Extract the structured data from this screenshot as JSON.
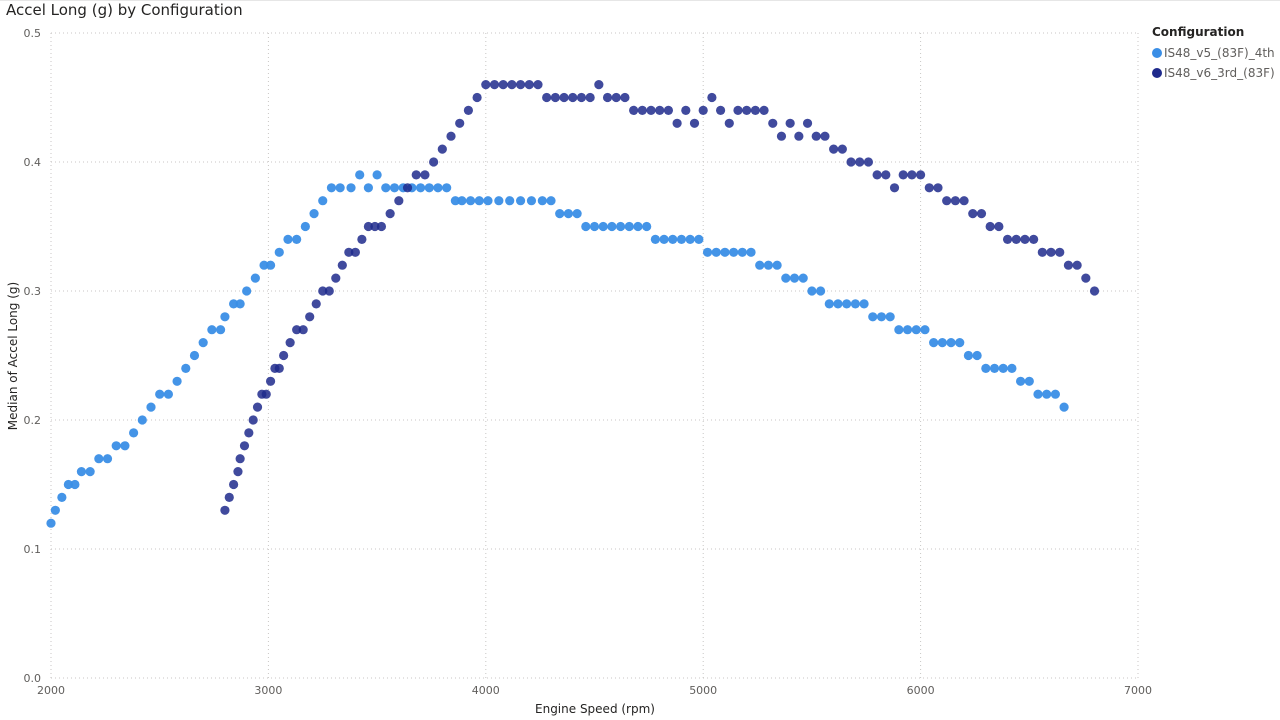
{
  "chart_data": {
    "type": "scatter",
    "title": "Accel Long (g) by Configuration",
    "xlabel": "Engine Speed (rpm)",
    "ylabel": "Median of Accel Long (g)",
    "xlim": [
      2000,
      7000
    ],
    "ylim": [
      0.0,
      0.5
    ],
    "xticks": [
      2000,
      3000,
      4000,
      5000,
      6000,
      7000
    ],
    "yticks": [
      0.0,
      0.1,
      0.2,
      0.3,
      0.4,
      0.5
    ],
    "ytick_labels": [
      "0.0",
      "0.1",
      "0.2",
      "0.3",
      "0.4",
      "0.5"
    ],
    "grid": "dotted",
    "legend": {
      "title": "Configuration",
      "placement": "top-right"
    },
    "series": [
      {
        "name": "IS48_v5_(83F)_4th",
        "color": "#3a8ee6",
        "x": [
          2000,
          2020,
          2050,
          2080,
          2110,
          2140,
          2180,
          2220,
          2260,
          2300,
          2340,
          2380,
          2420,
          2460,
          2500,
          2540,
          2580,
          2620,
          2660,
          2700,
          2740,
          2780,
          2800,
          2840,
          2870,
          2900,
          2940,
          2980,
          3010,
          3050,
          3090,
          3130,
          3170,
          3210,
          3250,
          3290,
          3330,
          3380,
          3420,
          3460,
          3500,
          3540,
          3580,
          3620,
          3660,
          3700,
          3740,
          3780,
          3820,
          3860,
          3890,
          3930,
          3970,
          4010,
          4060,
          4110,
          4160,
          4210,
          4260,
          4300,
          4340,
          4380,
          4420,
          4460,
          4500,
          4540,
          4580,
          4620,
          4660,
          4700,
          4740,
          4780,
          4820,
          4860,
          4900,
          4940,
          4980,
          5020,
          5060,
          5100,
          5140,
          5180,
          5220,
          5260,
          5300,
          5340,
          5380,
          5420,
          5460,
          5500,
          5540,
          5580,
          5620,
          5660,
          5700,
          5740,
          5780,
          5820,
          5860,
          5900,
          5940,
          5980,
          6020,
          6060,
          6100,
          6140,
          6180,
          6220,
          6260,
          6300,
          6340,
          6380,
          6420,
          6460,
          6500,
          6540,
          6580,
          6620,
          6660
        ],
        "y": [
          0.12,
          0.13,
          0.14,
          0.15,
          0.15,
          0.16,
          0.16,
          0.17,
          0.17,
          0.18,
          0.18,
          0.19,
          0.2,
          0.21,
          0.22,
          0.22,
          0.23,
          0.24,
          0.25,
          0.26,
          0.27,
          0.27,
          0.28,
          0.29,
          0.29,
          0.3,
          0.31,
          0.32,
          0.32,
          0.33,
          0.34,
          0.34,
          0.35,
          0.36,
          0.37,
          0.38,
          0.38,
          0.38,
          0.39,
          0.38,
          0.39,
          0.38,
          0.38,
          0.38,
          0.38,
          0.38,
          0.38,
          0.38,
          0.38,
          0.37,
          0.37,
          0.37,
          0.37,
          0.37,
          0.37,
          0.37,
          0.37,
          0.37,
          0.37,
          0.37,
          0.36,
          0.36,
          0.36,
          0.35,
          0.35,
          0.35,
          0.35,
          0.35,
          0.35,
          0.35,
          0.35,
          0.34,
          0.34,
          0.34,
          0.34,
          0.34,
          0.34,
          0.33,
          0.33,
          0.33,
          0.33,
          0.33,
          0.33,
          0.32,
          0.32,
          0.32,
          0.31,
          0.31,
          0.31,
          0.3,
          0.3,
          0.29,
          0.29,
          0.29,
          0.29,
          0.29,
          0.28,
          0.28,
          0.28,
          0.27,
          0.27,
          0.27,
          0.27,
          0.26,
          0.26,
          0.26,
          0.26,
          0.25,
          0.25,
          0.24,
          0.24,
          0.24,
          0.24,
          0.23,
          0.23,
          0.22,
          0.22,
          0.22,
          0.21
        ]
      },
      {
        "name": "IS48_v6_3rd_(83F)",
        "color": "#1e2a8c",
        "x": [
          2800,
          2820,
          2840,
          2860,
          2870,
          2890,
          2910,
          2930,
          2950,
          2970,
          2990,
          3010,
          3030,
          3050,
          3070,
          3100,
          3130,
          3160,
          3190,
          3220,
          3250,
          3280,
          3310,
          3340,
          3370,
          3400,
          3430,
          3460,
          3490,
          3520,
          3560,
          3600,
          3640,
          3680,
          3720,
          3760,
          3800,
          3840,
          3880,
          3920,
          3960,
          4000,
          4040,
          4080,
          4120,
          4160,
          4200,
          4240,
          4280,
          4320,
          4360,
          4400,
          4440,
          4480,
          4520,
          4560,
          4600,
          4640,
          4680,
          4720,
          4760,
          4800,
          4840,
          4880,
          4920,
          4960,
          5000,
          5040,
          5080,
          5120,
          5160,
          5200,
          5240,
          5280,
          5320,
          5360,
          5400,
          5440,
          5480,
          5520,
          5560,
          5600,
          5640,
          5680,
          5720,
          5760,
          5800,
          5840,
          5880,
          5920,
          5960,
          6000,
          6040,
          6080,
          6120,
          6160,
          6200,
          6240,
          6280,
          6320,
          6360,
          6400,
          6440,
          6480,
          6520,
          6560,
          6600,
          6640,
          6680,
          6720,
          6760,
          6800
        ],
        "y": [
          0.13,
          0.14,
          0.15,
          0.16,
          0.17,
          0.18,
          0.19,
          0.2,
          0.21,
          0.22,
          0.22,
          0.23,
          0.24,
          0.24,
          0.25,
          0.26,
          0.27,
          0.27,
          0.28,
          0.29,
          0.3,
          0.3,
          0.31,
          0.32,
          0.33,
          0.33,
          0.34,
          0.35,
          0.35,
          0.35,
          0.36,
          0.37,
          0.38,
          0.39,
          0.39,
          0.4,
          0.41,
          0.42,
          0.43,
          0.44,
          0.45,
          0.46,
          0.46,
          0.46,
          0.46,
          0.46,
          0.46,
          0.46,
          0.45,
          0.45,
          0.45,
          0.45,
          0.45,
          0.45,
          0.46,
          0.45,
          0.45,
          0.45,
          0.44,
          0.44,
          0.44,
          0.44,
          0.44,
          0.43,
          0.44,
          0.43,
          0.44,
          0.45,
          0.44,
          0.43,
          0.44,
          0.44,
          0.44,
          0.44,
          0.43,
          0.42,
          0.43,
          0.42,
          0.43,
          0.42,
          0.42,
          0.41,
          0.41,
          0.4,
          0.4,
          0.4,
          0.39,
          0.39,
          0.38,
          0.39,
          0.39,
          0.39,
          0.38,
          0.38,
          0.37,
          0.37,
          0.37,
          0.36,
          0.36,
          0.35,
          0.35,
          0.34,
          0.34,
          0.34,
          0.34,
          0.33,
          0.33,
          0.33,
          0.32,
          0.32,
          0.31,
          0.3
        ]
      }
    ]
  }
}
